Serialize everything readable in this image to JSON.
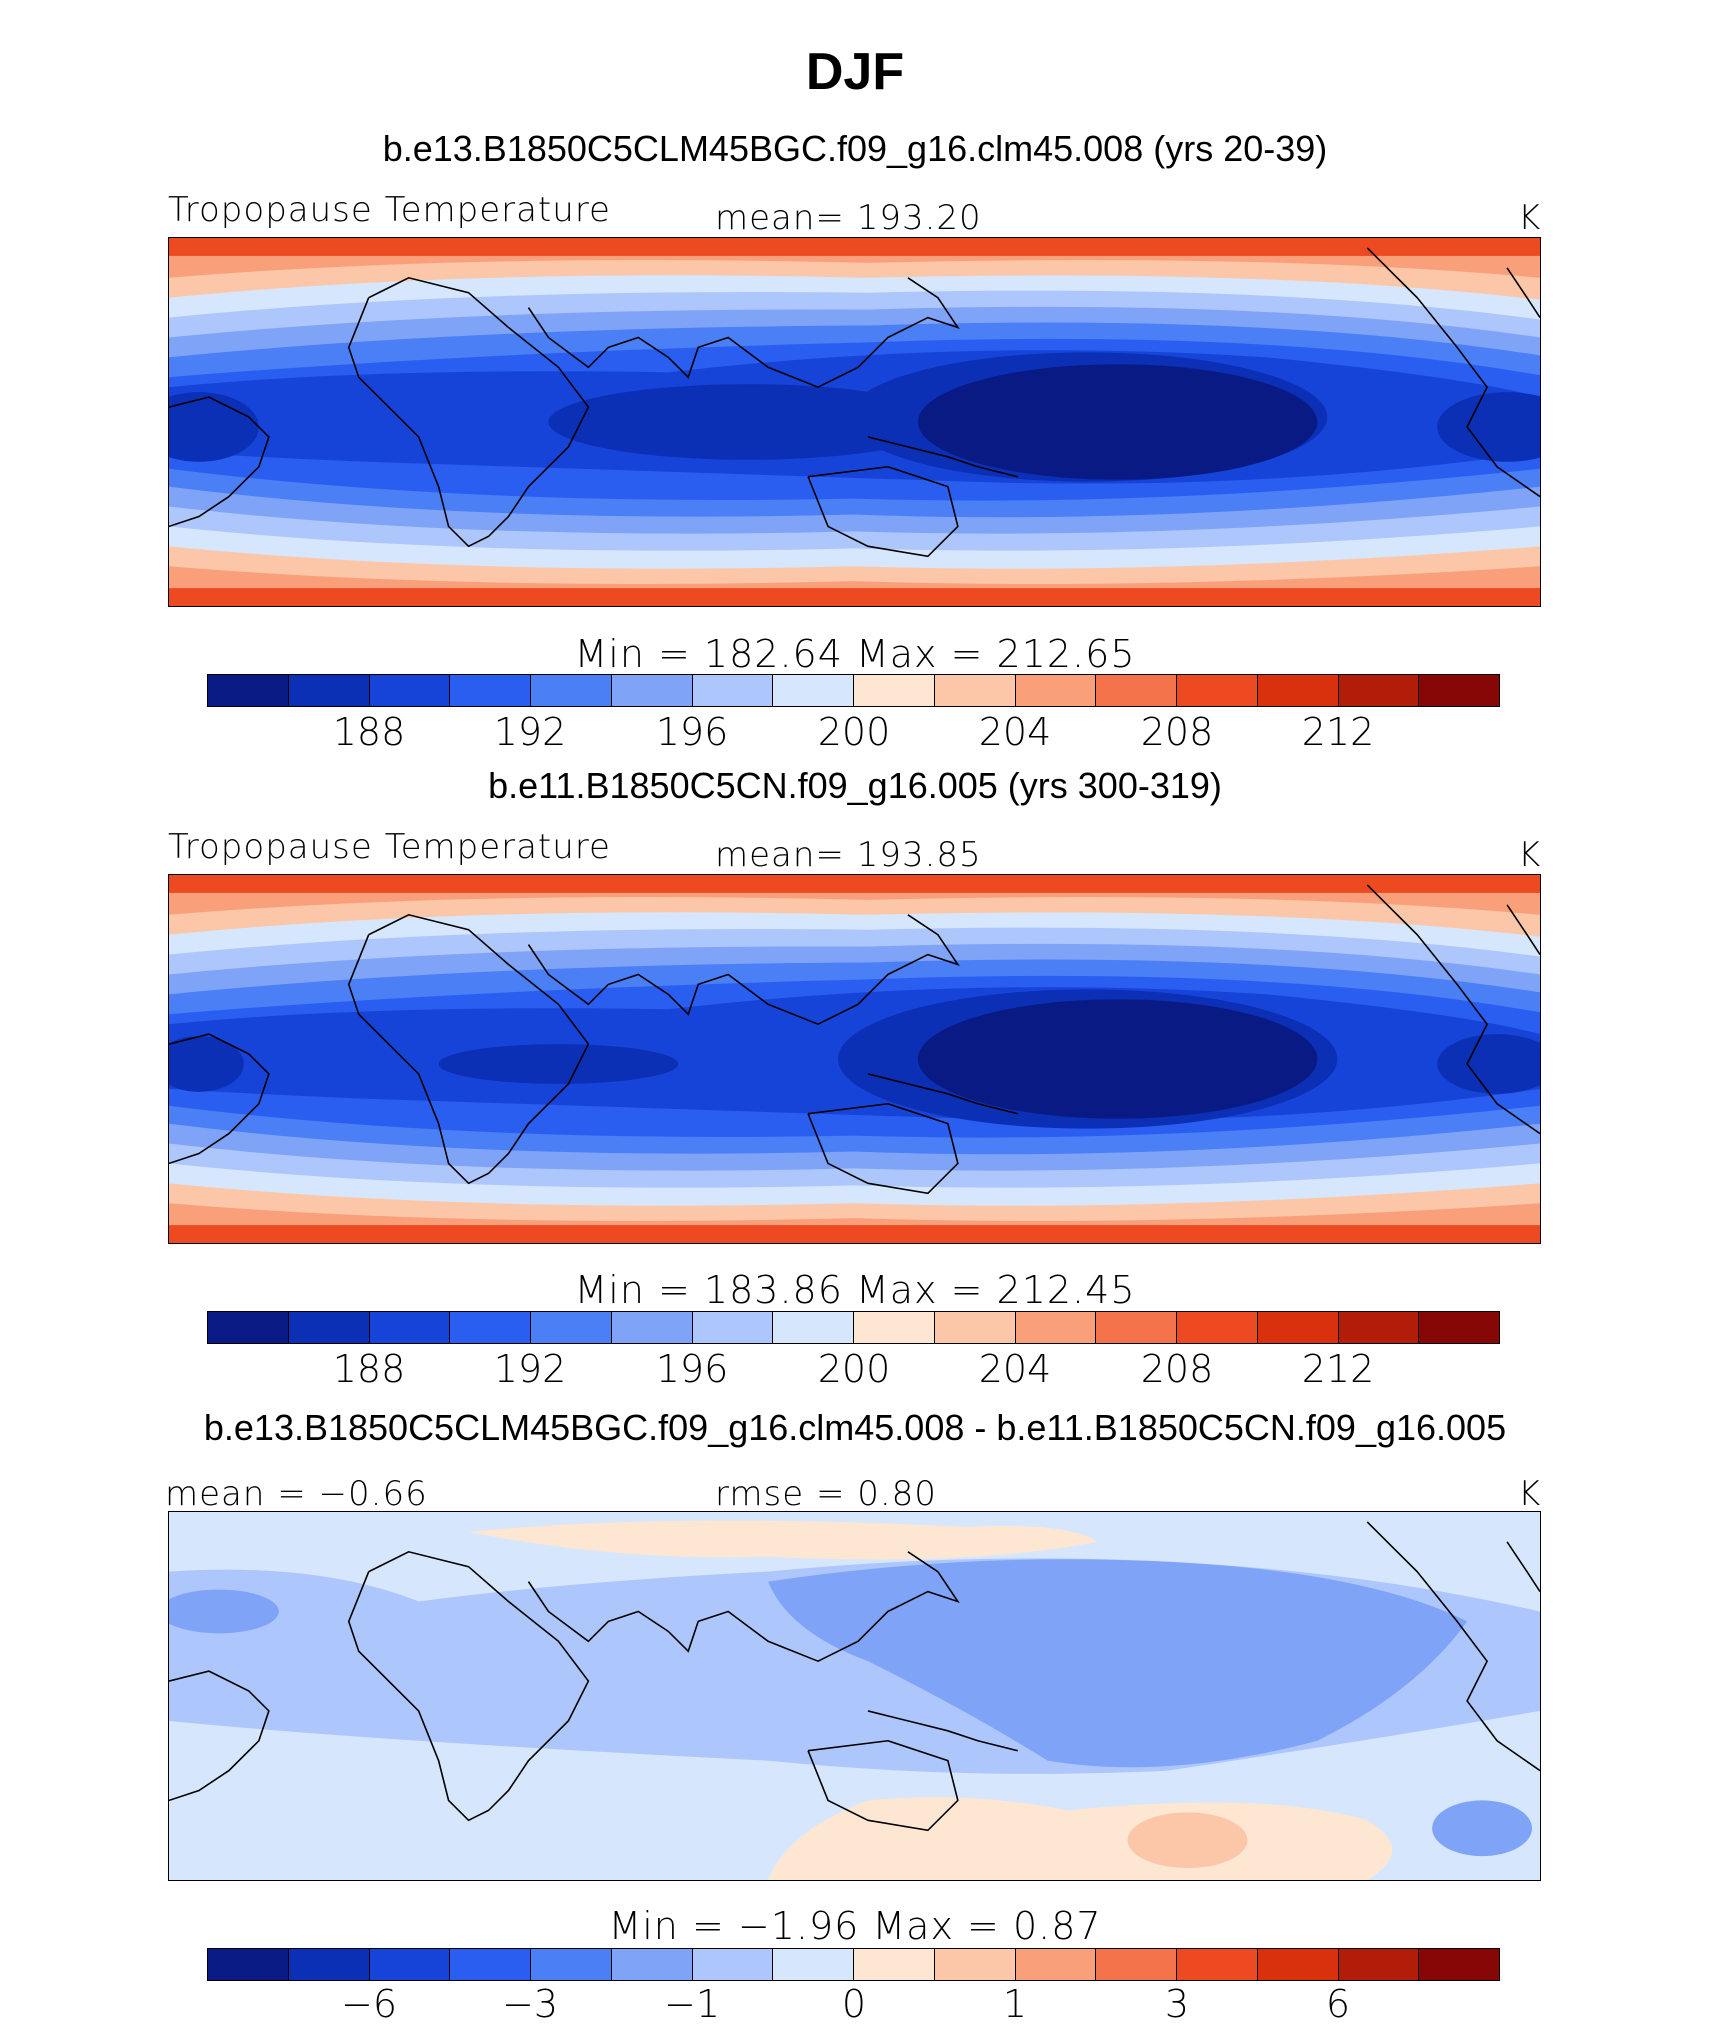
{
  "title": "DJF",
  "panels": [
    {
      "case": "b.e13.B1850C5CLM45BGC.f09_g16.clm45.008 (yrs 20-39)",
      "left_label": "Tropopause Temperature",
      "center_label": "mean=  193.20",
      "units": "K",
      "minmax": "Min  =  182.64  Max  =  212.65",
      "ticks": [
        "188",
        "192",
        "196",
        "200",
        "204",
        "208",
        "212"
      ]
    },
    {
      "case": "b.e11.B1850C5CN.f09_g16.005 (yrs 300-319)",
      "left_label": "Tropopause Temperature",
      "center_label": "mean=  193.85",
      "units": "K",
      "minmax": "Min  =  183.86  Max  =  212.45",
      "ticks": [
        "188",
        "192",
        "196",
        "200",
        "204",
        "208",
        "212"
      ]
    },
    {
      "case": "b.e13.B1850C5CLM45BGC.f09_g16.clm45.008 - b.e11.B1850C5CN.f09_g16.005",
      "left_label": "mean =   −0.66",
      "center_label": "rmse =    0.80",
      "units": "K",
      "minmax": "Min  =    −1.96  Max  =     0.87",
      "ticks": [
        "−6",
        "−3",
        "−1",
        "0",
        "1",
        "3",
        "6"
      ]
    }
  ],
  "colorbar_colors": [
    "#0a1a85",
    "#0b2fb5",
    "#1744d8",
    "#2a5ef0",
    "#4a7ff5",
    "#7fa3f7",
    "#adc6fb",
    "#d6e6fc",
    "#fde7d3",
    "#fbc7a8",
    "#f9a07a",
    "#f5734a",
    "#ee4a22",
    "#d9300d",
    "#b11d08",
    "#870606"
  ]
}
